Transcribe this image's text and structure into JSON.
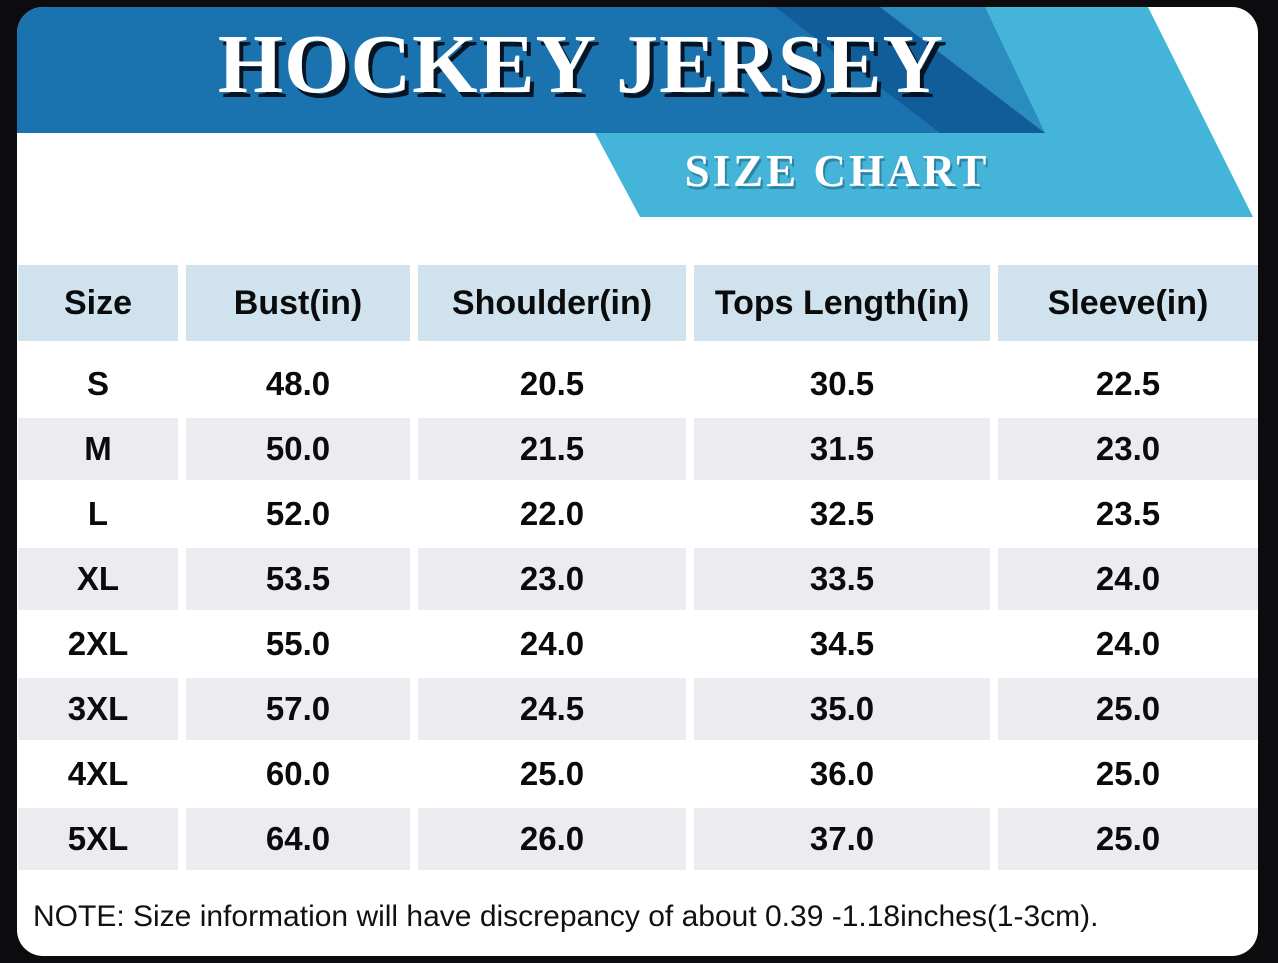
{
  "header": {
    "title": "HOCKEY JERSEY",
    "subtitle": "SIZE CHART"
  },
  "chart_data": {
    "type": "table",
    "title": "HOCKEY JERSEY",
    "subtitle": "SIZE CHART",
    "columns": [
      "Size",
      "Bust(in)",
      "Shoulder(in)",
      "Tops Length(in)",
      "Sleeve(in)"
    ],
    "rows": [
      [
        "S",
        "48.0",
        "20.5",
        "30.5",
        "22.5"
      ],
      [
        "M",
        "50.0",
        "21.5",
        "31.5",
        "23.0"
      ],
      [
        "L",
        "52.0",
        "22.0",
        "32.5",
        "23.5"
      ],
      [
        "XL",
        "53.5",
        "23.0",
        "33.5",
        "24.0"
      ],
      [
        "2XL",
        "55.0",
        "24.0",
        "34.5",
        "24.0"
      ],
      [
        "3XL",
        "57.0",
        "24.5",
        "35.0",
        "25.0"
      ],
      [
        "4XL",
        "60.0",
        "25.0",
        "36.0",
        "25.0"
      ],
      [
        "5XL",
        "64.0",
        "26.0",
        "37.0",
        "25.0"
      ]
    ]
  },
  "note": {
    "text": "NOTE: Size information will have discrepancy of about 0.39 -1.18inches(1-3cm)."
  },
  "colors": {
    "banner_dark_blue": "#1a73af",
    "banner_darker_stripe": "#115d99",
    "banner_medium_stripe": "#2b8dbf",
    "banner_light_blue": "#44b5d9",
    "table_header_bg": "#cfe2ed",
    "row_alt_bg": "#ebebf0",
    "frame_black": "#0c0c0e",
    "text_white": "#ffffff",
    "text_black": "#0b0b0b"
  }
}
